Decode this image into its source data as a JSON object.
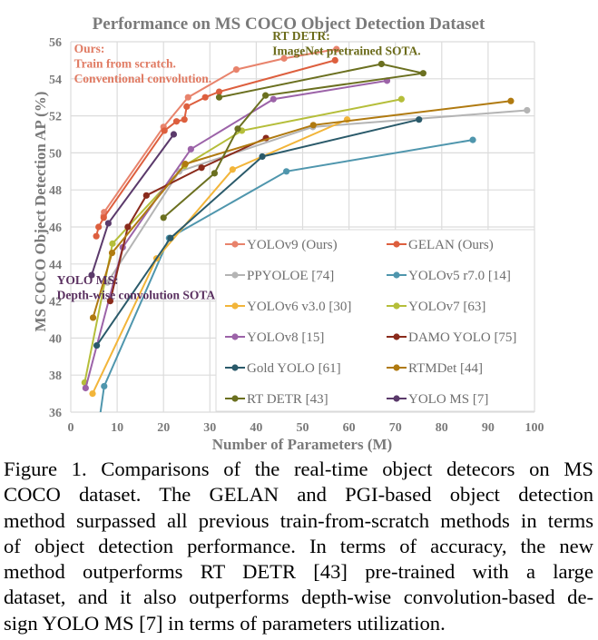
{
  "chart_data": {
    "type": "line",
    "title": "Performance on MS COCO Object Detection Dataset",
    "xlabel": "Number of Parameters (M)",
    "ylabel": "MS COCO Object Detection AP (%)",
    "xlim": [
      0,
      100
    ],
    "ylim": [
      36,
      56
    ],
    "xticks": [
      0,
      10,
      20,
      30,
      40,
      50,
      60,
      70,
      80,
      90,
      100
    ],
    "yticks": [
      36,
      38,
      40,
      42,
      44,
      46,
      48,
      50,
      52,
      54,
      56
    ],
    "grid": true,
    "legend_position": "bottom-right",
    "annotations": [
      {
        "name": "ours-note",
        "lines": [
          "Ours:",
          "Train from scratch.",
          "Conventional convolution."
        ],
        "color": "#e07a62",
        "x": 0.7,
        "y": 55.4
      },
      {
        "name": "rtdetr-note",
        "lines": [
          "RT DETR:",
          "ImageNet pretrained SOTA."
        ],
        "color": "#6b6b1a",
        "x": 43.5,
        "y": 56.1
      },
      {
        "name": "yoloms-note",
        "lines": [
          "YOLO MS:",
          "Depth-wise convolution SOTA."
        ],
        "color": "#5a3060",
        "x": -3,
        "y": 42.9
      }
    ],
    "series": [
      {
        "name": "YOLOv9 (Ours)",
        "color": "#e8836c",
        "x": [
          7.1,
          7.2,
          20.0,
          25.3,
          35.7,
          46.0,
          57.3
        ],
        "y": [
          46.6,
          46.8,
          51.4,
          53.0,
          54.5,
          55.1,
          55.6
        ]
      },
      {
        "name": "GELAN (Ours)",
        "color": "#dd5f3e",
        "x": [
          5.5,
          6.0,
          7.1,
          20.2,
          22.8,
          24.5,
          25.0,
          29.0,
          32.0,
          57.0
        ],
        "y": [
          45.5,
          46.0,
          46.5,
          51.2,
          51.7,
          51.8,
          52.5,
          53.0,
          53.3,
          55.0
        ]
      },
      {
        "name": "PPYOLOE [74]",
        "color": "#b4b4b4",
        "x": [
          7.9,
          23.4,
          52.2,
          98.4
        ],
        "y": [
          43.0,
          49.0,
          51.4,
          52.3
        ]
      },
      {
        "name": "YOLOv5 r7.0 [14]",
        "color": "#4f96ad",
        "x": [
          1.9,
          7.2,
          21.2,
          46.5,
          86.7
        ],
        "y": [
          28.0,
          37.4,
          45.4,
          49.0,
          50.7
        ]
      },
      {
        "name": "YOLOv6 v3.0 [30]",
        "color": "#f2b53a",
        "x": [
          4.7,
          18.5,
          34.9,
          59.6
        ],
        "y": [
          37.0,
          44.3,
          49.1,
          51.8
        ]
      },
      {
        "name": "YOLOv7 [63]",
        "color": "#b5be3a",
        "x": [
          3.0,
          9.0,
          24.5,
          36.9,
          71.3
        ],
        "y": [
          37.6,
          45.1,
          49.3,
          51.2,
          52.9
        ]
      },
      {
        "name": "YOLOv8 [15]",
        "color": "#9c63a8",
        "x": [
          3.2,
          11.2,
          25.9,
          43.7,
          68.2
        ],
        "y": [
          37.3,
          44.9,
          50.2,
          52.9,
          53.9
        ]
      },
      {
        "name": "DAMO YOLO [75]",
        "color": "#8a2b1c",
        "x": [
          8.5,
          12.3,
          16.3,
          28.2,
          42.1
        ],
        "y": [
          42.0,
          46.0,
          47.7,
          49.2,
          50.8
        ]
      },
      {
        "name": "Gold YOLO [61]",
        "color": "#2a5a6a",
        "x": [
          5.6,
          21.5,
          41.3,
          75.1
        ],
        "y": [
          39.6,
          45.4,
          49.8,
          51.8
        ]
      },
      {
        "name": "RTMDet [44]",
        "color": "#b07a10",
        "x": [
          4.8,
          8.9,
          24.7,
          52.3,
          94.9
        ],
        "y": [
          41.1,
          44.6,
          49.4,
          51.5,
          52.8
        ]
      },
      {
        "name": "RT DETR [43]",
        "color": "#6b7020",
        "x": [
          20.0,
          31.0,
          36.0,
          42.0,
          76.0,
          67.0,
          32.0
        ],
        "y": [
          46.5,
          48.9,
          51.3,
          53.1,
          54.3,
          54.8,
          53.0
        ]
      },
      {
        "name": "YOLO MS [7]",
        "color": "#5b3a6b",
        "x": [
          4.5,
          8.1,
          22.2
        ],
        "y": [
          43.4,
          46.2,
          51.0
        ]
      }
    ]
  },
  "caption": {
    "lines": [
      "Figure 1.  Comparisons of the real-time object detecors on MS",
      "COCO dataset.  The GELAN and PGI-based object detection",
      "method surpassed all previous train-from-scratch methods in terms",
      "of object detection performance.  In terms of accuracy, the new",
      "method outperforms RT DETR [43] pre-trained with a large",
      "dataset, and it also outperforms depth-wise convolution-based de-",
      "sign YOLO MS [7] in terms of parameters utilization."
    ]
  }
}
